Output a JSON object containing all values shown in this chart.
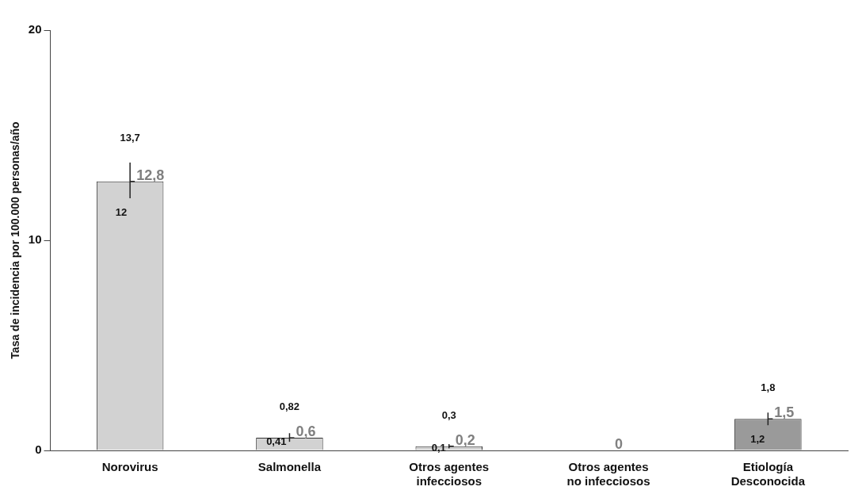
{
  "chart_data": {
    "type": "bar",
    "ylabel": "Tasa de incidencia por 100.000 personas/año",
    "categories": [
      "Norovirus",
      "Salmonella",
      "Otros agentes infecciosos",
      "Otros agentes no infecciosos",
      "Etiología Desconocida"
    ],
    "values": [
      12.8,
      0.6,
      0.2,
      0,
      1.5
    ],
    "colors": [
      "#d2d2d2",
      "#d2d2d2",
      "#d2d2d2",
      "#d2d2d2",
      "#9a9a9a"
    ],
    "errors": [
      [
        12,
        13.7
      ],
      [
        0.41,
        0.82
      ],
      [
        0.1,
        0.3
      ],
      null,
      [
        1.2,
        1.8
      ]
    ],
    "value_labels": [
      "12,8",
      "0,6",
      "0,2",
      "0",
      "1,5"
    ],
    "annotations": [
      {
        "text": "13,7",
        "x": "Norovirus",
        "y": 13.7
      },
      {
        "text": "12",
        "x": "Norovirus",
        "y": 12
      },
      {
        "text": "0,82",
        "x": "Salmonella",
        "y": 0.82
      },
      {
        "text": "0,41",
        "x": "Salmonella",
        "y": 0.41
      },
      {
        "text": "0,3",
        "x": "Otros agentes infecciosos",
        "y": 0.3
      },
      {
        "text": "0,1",
        "x": "Otros agentes infecciosos",
        "y": 0.1
      },
      {
        "text": "1,8",
        "x": "Etiología Desconocida",
        "y": 1.8
      },
      {
        "text": "1,2",
        "x": "Etiología Desconocida",
        "y": 1.2
      }
    ],
    "ylim": [
      0,
      20
    ],
    "yticks": [
      0,
      10,
      20
    ],
    "grid": false,
    "legend": false
  }
}
